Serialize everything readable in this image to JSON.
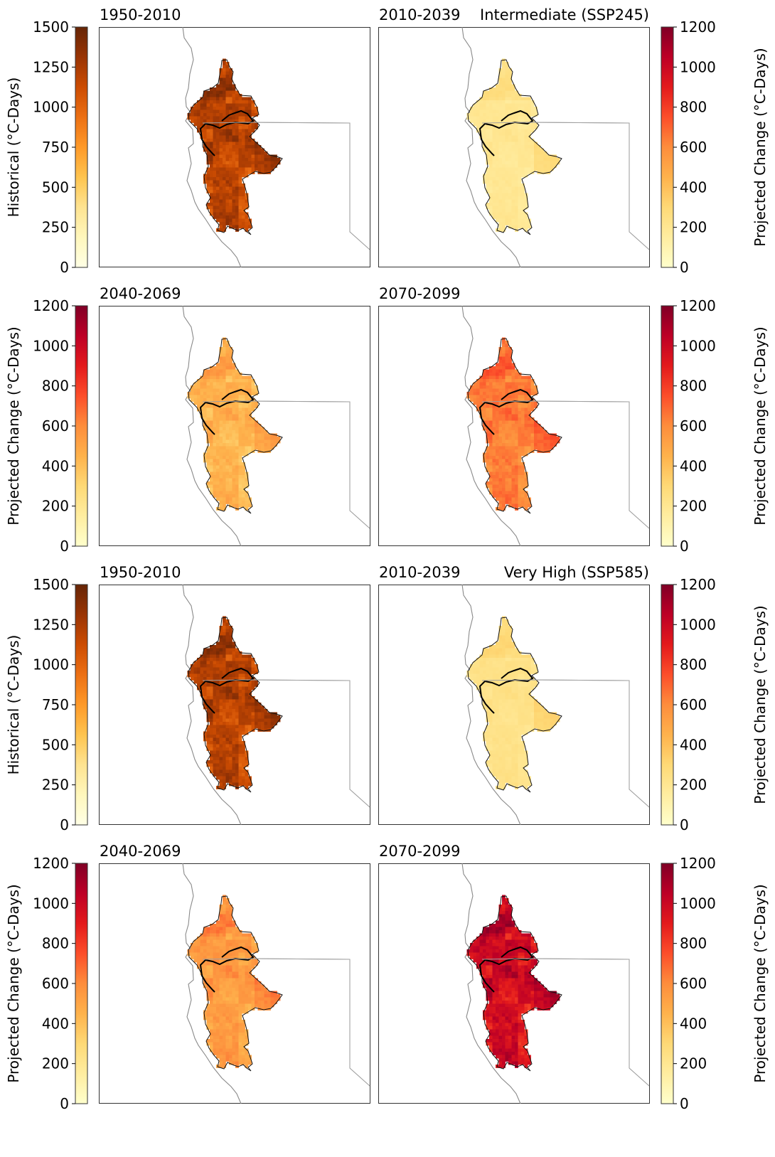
{
  "chart_data": [
    {
      "type": "heatmap",
      "title": "1950-2010",
      "scenario": "",
      "colorbar": {
        "label": "Historical (°C-Days)",
        "min": 0,
        "max": 1500,
        "ticks": [
          "0",
          "250",
          "500",
          "750",
          "1000",
          "1250",
          "1500"
        ],
        "cmap": "YlOrBr"
      },
      "intensity": 0.78
    },
    {
      "type": "heatmap",
      "title": "2010-2039",
      "scenario": "Intermediate (SSP245)",
      "colorbar": {
        "label": "Projected Change (°C-Days)",
        "min": 0,
        "max": 1200,
        "ticks": [
          "0",
          "200",
          "400",
          "600",
          "800",
          "1000",
          "1200"
        ],
        "cmap": "YlOrRd"
      },
      "intensity": 0.16
    },
    {
      "type": "heatmap",
      "title": "2040-2069",
      "scenario": "",
      "colorbar": {
        "label": "Projected Change (°C-Days)",
        "min": 0,
        "max": 1200,
        "ticks": [
          "0",
          "200",
          "400",
          "600",
          "800",
          "1000",
          "1200"
        ],
        "cmap": "YlOrRd"
      },
      "intensity": 0.36
    },
    {
      "type": "heatmap",
      "title": "2070-2099",
      "scenario": "",
      "colorbar": {
        "label": "Projected Change (°C-Days)",
        "min": 0,
        "max": 1200,
        "ticks": [
          "0",
          "200",
          "400",
          "600",
          "800",
          "1000",
          "1200"
        ],
        "cmap": "YlOrRd"
      },
      "intensity": 0.52
    },
    {
      "type": "heatmap",
      "title": "1950-2010",
      "scenario": "",
      "colorbar": {
        "label": "Historical (°C-Days)",
        "min": 0,
        "max": 1500,
        "ticks": [
          "0",
          "250",
          "500",
          "750",
          "1000",
          "1250",
          "1500"
        ],
        "cmap": "YlOrBr"
      },
      "intensity": 0.78
    },
    {
      "type": "heatmap",
      "title": "2010-2039",
      "scenario": "Very High (SSP585)",
      "colorbar": {
        "label": "Projected Change (°C-Days)",
        "min": 0,
        "max": 1200,
        "ticks": [
          "0",
          "200",
          "400",
          "600",
          "800",
          "1000",
          "1200"
        ],
        "cmap": "YlOrRd"
      },
      "intensity": 0.19
    },
    {
      "type": "heatmap",
      "title": "2040-2069",
      "scenario": "",
      "colorbar": {
        "label": "Projected Change (°C-Days)",
        "min": 0,
        "max": 1200,
        "ticks": [
          "0",
          "200",
          "400",
          "600",
          "800",
          "1000",
          "1200"
        ],
        "cmap": "YlOrRd"
      },
      "intensity": 0.44
    },
    {
      "type": "heatmap",
      "title": "2070-2099",
      "scenario": "",
      "colorbar": {
        "label": "Projected Change (°C-Days)",
        "min": 0,
        "max": 1200,
        "ticks": [
          "0",
          "200",
          "400",
          "600",
          "800",
          "1000",
          "1200"
        ],
        "cmap": "YlOrRd"
      },
      "intensity": 0.8
    }
  ]
}
